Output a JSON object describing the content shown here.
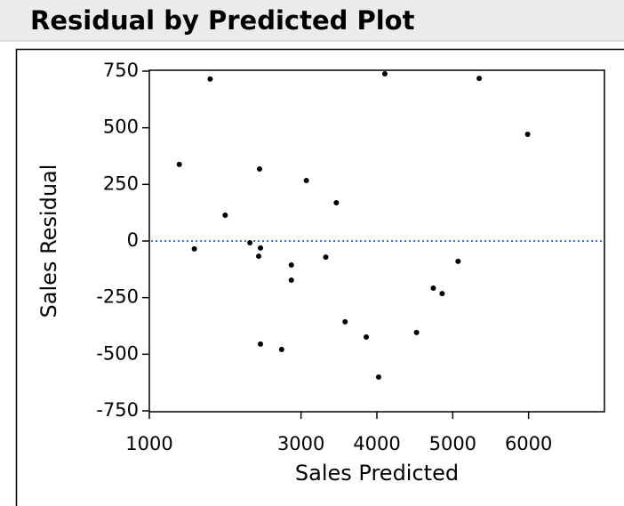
{
  "chart_data": {
    "type": "scatter",
    "title": "Residual by Predicted Plot",
    "xlabel": "Sales Predicted",
    "ylabel": "Sales Residual",
    "x": [
      1395,
      1593,
      1802,
      2000,
      2326,
      2453,
      2465,
      2442,
      2465,
      2744,
      2872,
      2872,
      3070,
      3326,
      3465,
      3581,
      3860,
      4023,
      4105,
      4523,
      4744,
      4860,
      5070,
      5349,
      5988
    ],
    "values": [
      338,
      -35,
      715,
      114,
      -8,
      318,
      -31,
      -67,
      -455,
      -479,
      -106,
      -173,
      267,
      -71,
      169,
      -357,
      -424,
      -601,
      738,
      -404,
      -208,
      -232,
      -90,
      718,
      471
    ],
    "color": "#000000",
    "xlim": [
      1000,
      7000
    ],
    "xticks": [
      1000,
      3000,
      4000,
      5000,
      6000
    ],
    "ylim": [
      -750,
      750
    ],
    "yticks": [
      -750,
      -500,
      -250,
      0,
      250,
      500,
      750
    ],
    "reference_line": 0,
    "reference_color": "#3a6fd8"
  }
}
